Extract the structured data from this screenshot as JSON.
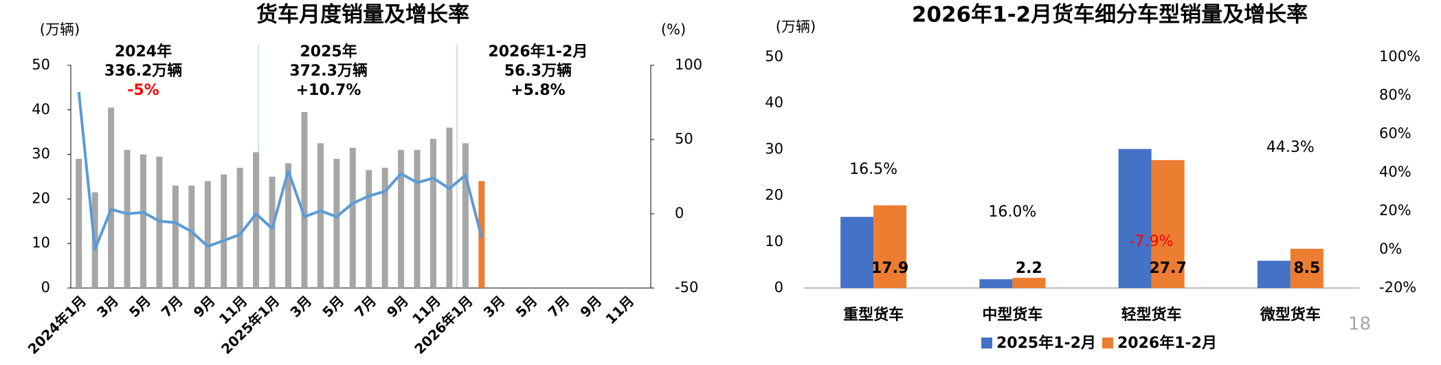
{
  "chart_data": [
    {
      "type": "bar-line",
      "title": "货车月度销量及增长率",
      "y_label": "(万辆)",
      "y2_label": "(%)",
      "categories": [
        "2024年1月",
        null,
        "3月",
        null,
        "5月",
        null,
        "7月",
        null,
        "9月",
        null,
        "11月",
        null,
        "2025年1月",
        null,
        "3月",
        null,
        "5月",
        null,
        "7月",
        null,
        "9月",
        null,
        "11月",
        null,
        "2026年1月",
        null,
        "3月",
        null,
        "5月",
        null,
        "7月",
        null,
        "9月",
        null,
        "11月",
        null
      ],
      "series": [
        {
          "type": "bar",
          "color": "#a6a6a6",
          "values": [
            29,
            21.5,
            40.5,
            31,
            30,
            29.5,
            23,
            23,
            24,
            25.5,
            27,
            30.5,
            25,
            28,
            39.5,
            32.5,
            29,
            31.5,
            26.5,
            27,
            31,
            31,
            33.5,
            36,
            32.5,
            null,
            null,
            null,
            null,
            null,
            null,
            null,
            null,
            null,
            null,
            null
          ]
        },
        {
          "type": "bar",
          "color": "#ed7d31",
          "values": [
            null,
            null,
            null,
            null,
            null,
            null,
            null,
            null,
            null,
            null,
            null,
            null,
            null,
            null,
            null,
            null,
            null,
            null,
            null,
            null,
            null,
            null,
            null,
            null,
            null,
            24,
            null,
            null,
            null,
            null,
            null,
            null,
            null,
            null,
            null,
            null
          ]
        },
        {
          "type": "line",
          "axis": "y2",
          "color": "#5b9bd5",
          "values": [
            82,
            -24,
            3,
            0,
            1,
            -5,
            -6,
            -12,
            -22,
            -18,
            -14,
            0,
            -10,
            29,
            -2,
            2,
            -2,
            7,
            12,
            15,
            27,
            21,
            24,
            17,
            26,
            -16,
            null,
            null,
            null,
            null,
            null,
            null,
            null,
            null,
            null,
            null
          ]
        }
      ],
      "ylim": [
        0,
        50
      ],
      "yticks": [
        0,
        10,
        20,
        30,
        40,
        50
      ],
      "y2lim": [
        -50,
        100
      ],
      "y2ticks": [
        -50,
        0,
        50,
        100
      ],
      "annotations": [
        {
          "lines": [
            {
              "text": "2024年"
            },
            {
              "text": "336.2万辆"
            },
            {
              "text": "-5%",
              "color": "#ff0000"
            }
          ]
        },
        {
          "lines": [
            {
              "text": "2025年"
            },
            {
              "text": "372.3万辆"
            },
            {
              "text": "+10.7%"
            }
          ]
        },
        {
          "lines": [
            {
              "text": "2026年1-2月"
            },
            {
              "text": "56.3万辆"
            },
            {
              "text": "+5.8%"
            }
          ]
        }
      ]
    },
    {
      "type": "grouped-bar",
      "title": "2026年1-2月货车细分车型销量及增长率",
      "y_label": "(万辆)",
      "categories": [
        "重型货车",
        "中型货车",
        "轻型货车",
        "微型货车"
      ],
      "series": [
        {
          "name": "2025年1-2月",
          "color": "#4472c4",
          "values": [
            15.4,
            1.9,
            30.1,
            5.9
          ]
        },
        {
          "name": "2026年1-2月",
          "color": "#ed7d31",
          "values": [
            17.9,
            2.2,
            27.7,
            8.5
          ],
          "value_labels": [
            "17.9",
            "2.2",
            "27.7",
            "8.5"
          ]
        }
      ],
      "growth_labels": [
        {
          "text": "16.5%"
        },
        {
          "text": "16.0%"
        },
        {
          "text": "-7.9%",
          "color": "#ff0000"
        },
        {
          "text": "44.3%"
        }
      ],
      "ylim": [
        0,
        50
      ],
      "yticks": [
        0,
        10,
        20,
        30,
        40,
        50
      ],
      "y2lim": [
        -20,
        100
      ],
      "y2ticks": [
        {
          "value": -20,
          "label": "-20%"
        },
        {
          "value": 0,
          "label": "0%"
        },
        {
          "value": 20,
          "label": "20%"
        },
        {
          "value": 40,
          "label": "40%"
        },
        {
          "value": 60,
          "label": "60%"
        },
        {
          "value": 80,
          "label": "80%"
        },
        {
          "value": 100,
          "label": "100%"
        }
      ]
    }
  ],
  "page_number": "18"
}
